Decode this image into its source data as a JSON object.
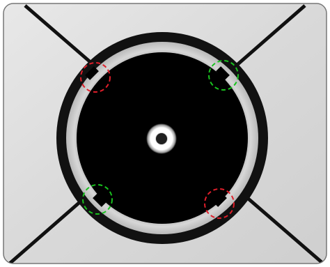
{
  "image": {
    "kind": "photo",
    "subject": "circular-part-inspection",
    "colors": {
      "frame_border": "#7f7f7f",
      "frame_background": "#dcdcdc",
      "cross_lines": "#0f0f0f",
      "outer_ring": "#111111",
      "light_band": "#c7c7c7",
      "inner_disc": "#000000",
      "center_glow": "#ffffff",
      "pass_marker": "#19c21f",
      "fail_marker": "#e01e2a"
    },
    "markers": [
      {
        "id": "top-left",
        "status": "fail",
        "color": "#e01e2a"
      },
      {
        "id": "top-right",
        "status": "pass",
        "color": "#19c21f"
      },
      {
        "id": "bottom-left",
        "status": "pass",
        "color": "#19c21f"
      },
      {
        "id": "bottom-right",
        "status": "fail",
        "color": "#e01e2a"
      }
    ]
  }
}
